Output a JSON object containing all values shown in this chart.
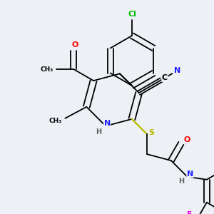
{
  "background_color": "#edf1f5",
  "atom_colors": {
    "C": "#000000",
    "N": "#2020ff",
    "O": "#ff0000",
    "S": "#b8b800",
    "Cl": "#00bb00",
    "F": "#ee00ee",
    "H": "#606060"
  },
  "bond_color": "#000000",
  "bond_lw": 1.3
}
